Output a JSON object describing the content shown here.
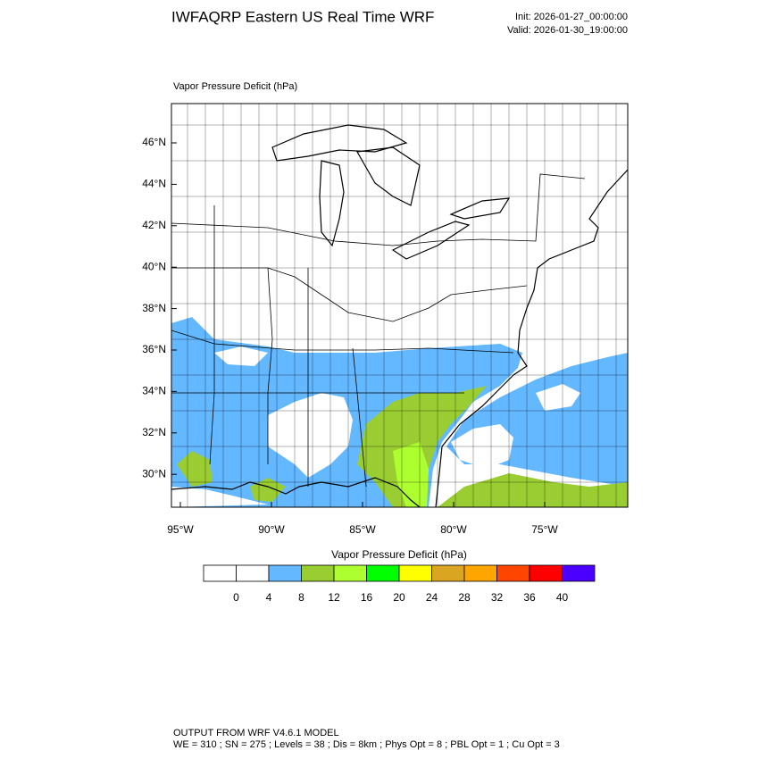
{
  "header": {
    "title": "IWFAQRP Eastern US Real Time WRF",
    "init": "Init: 2026-01-27_00:00:00",
    "valid": "Valid: 2026-01-30_19:00:00"
  },
  "map": {
    "subtitle": "Vapor Pressure Deficit   (hPa)",
    "lat_labels": [
      "46°N",
      "44°N",
      "42°N",
      "40°N",
      "38°N",
      "36°N",
      "34°N",
      "32°N",
      "30°N"
    ],
    "lon_labels": [
      "95°W",
      "90°W",
      "85°W",
      "80°W",
      "75°W"
    ]
  },
  "colorbar": {
    "title": "Vapor Pressure Deficit  (hPa)",
    "levels": [
      0,
      4,
      8,
      12,
      16,
      20,
      24,
      28,
      32,
      36,
      40
    ],
    "colors": [
      "#ffffff",
      "#ffffff",
      "#63b8ff",
      "#9acd32",
      "#adff2f",
      "#00ff00",
      "#ffff00",
      "#daa520",
      "#ffa500",
      "#ff4500",
      "#ff0000",
      "#4b00ff"
    ]
  },
  "footer": {
    "line1": "OUTPUT FROM WRF V4.6.1 MODEL",
    "line2": "WE = 310 ; SN = 275 ; Levels = 38 ; Dis = 8km ; Phys Opt = 8 ; PBL Opt = 1 ; Cu Opt = 3"
  }
}
